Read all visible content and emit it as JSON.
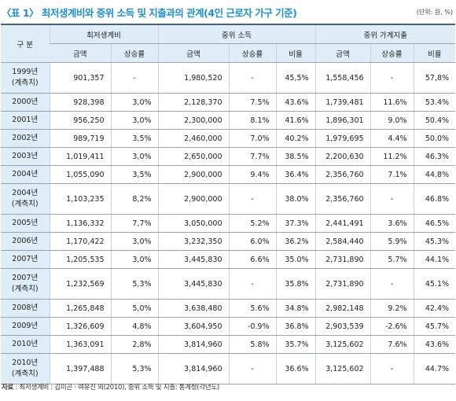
{
  "header": {
    "title": "〈표 1〉 최저생계비와 중위 소득 및 지출과의 관계(4인 근로자 가구 기준)",
    "unit": "(단위: 원, %)"
  },
  "table": {
    "corner": "구 분",
    "groups": [
      "최저생계비",
      "중위 소득",
      "중위 가계지출"
    ],
    "subcolumns": [
      "금액",
      "상승률",
      "금액",
      "상승률",
      "비율",
      "금액",
      "상승률",
      "비율"
    ],
    "rows": [
      {
        "label": [
          "1999년",
          "(계측치)"
        ],
        "cells": [
          "901,357",
          "-",
          "1,980,520",
          "-",
          "45,5%",
          "1,558,456",
          "-",
          "57,8%"
        ]
      },
      {
        "label": [
          "2000년"
        ],
        "cells": [
          "928,398",
          "3,0%",
          "2,128,370",
          "7.5%",
          "43.6%",
          "1,739,481",
          "11.6%",
          "53.4%"
        ]
      },
      {
        "label": [
          "2001년"
        ],
        "cells": [
          "956,250",
          "3,0%",
          "2,300,000",
          "8.1%",
          "41.6%",
          "1,896,301",
          "9.0%",
          "50.4%"
        ]
      },
      {
        "label": [
          "2002년"
        ],
        "cells": [
          "989,719",
          "3,5%",
          "2,460,000",
          "7.0%",
          "40.2%",
          "1,979,695",
          "4.4%",
          "50.0%"
        ]
      },
      {
        "label": [
          "2003년"
        ],
        "cells": [
          "1,019,411",
          "3,0%",
          "2,650,000",
          "7.7%",
          "38.5%",
          "2,200,630",
          "11.2%",
          "46.3%"
        ]
      },
      {
        "label": [
          "2004년"
        ],
        "cells": [
          "1,055,090",
          "3,5%",
          "2,900,000",
          "9.4%",
          "36.4%",
          "2,356,760",
          "7.1%",
          "44.8%"
        ]
      },
      {
        "label": [
          "2004년",
          "(계측치)"
        ],
        "cells": [
          "1,103,235",
          "8,2%",
          "2,900,000",
          "-",
          "38.0%",
          "2,356,760",
          "-",
          "46.8%"
        ]
      },
      {
        "label": [
          "2005년"
        ],
        "cells": [
          "1,136,332",
          "7,7%",
          "3,050,000",
          "5.2%",
          "37.3%",
          "2,441,491",
          "3.6%",
          "46.5%"
        ]
      },
      {
        "label": [
          "2006년"
        ],
        "cells": [
          "1,170,422",
          "3,0%",
          "3,232,350",
          "6.0%",
          "36.2%",
          "2,584,440",
          "5.9%",
          "45.3%"
        ]
      },
      {
        "label": [
          "2007년"
        ],
        "cells": [
          "1,205,535",
          "3,0%",
          "3,445,830",
          "6.6%",
          "35.0%",
          "2,731,890",
          "5.7%",
          "44.1%"
        ]
      },
      {
        "label": [
          "2007년",
          "(계측치)"
        ],
        "cells": [
          "1,232,569",
          "5,3%",
          "3,445,830",
          "-",
          "35.8%",
          "2,731,890",
          "-",
          "45.1%"
        ]
      },
      {
        "label": [
          "2008년"
        ],
        "cells": [
          "1,265,848",
          "5,0%",
          "3,638,480",
          "5.6%",
          "34.8%",
          "2,982,148",
          "9.2%",
          "42.4%"
        ]
      },
      {
        "label": [
          "2009년"
        ],
        "cells": [
          "1,326,609",
          "4,8%",
          "3,604,950",
          "-0.9%",
          "36.8%",
          "2,903,539",
          "-2.6%",
          "45.7%"
        ]
      },
      {
        "label": [
          "2010년"
        ],
        "cells": [
          "1,363,091",
          "2,8%",
          "3,814,960",
          "5.8%",
          "35.7%",
          "3,125,602",
          "7.6%",
          "43.6%"
        ]
      },
      {
        "label": [
          "2010년",
          "(계측치)"
        ],
        "cells": [
          "1,397,488",
          "5,3%",
          "3,814,960",
          "-",
          "36.6%",
          "3,125,602",
          "-",
          "44.7%"
        ]
      }
    ]
  },
  "footer": {
    "label": "자료",
    "text": " : 최저생계비 : 김미곤 · 여유진 외(2010), 중위 소득 및 지출: 통계청(각년도)"
  }
}
